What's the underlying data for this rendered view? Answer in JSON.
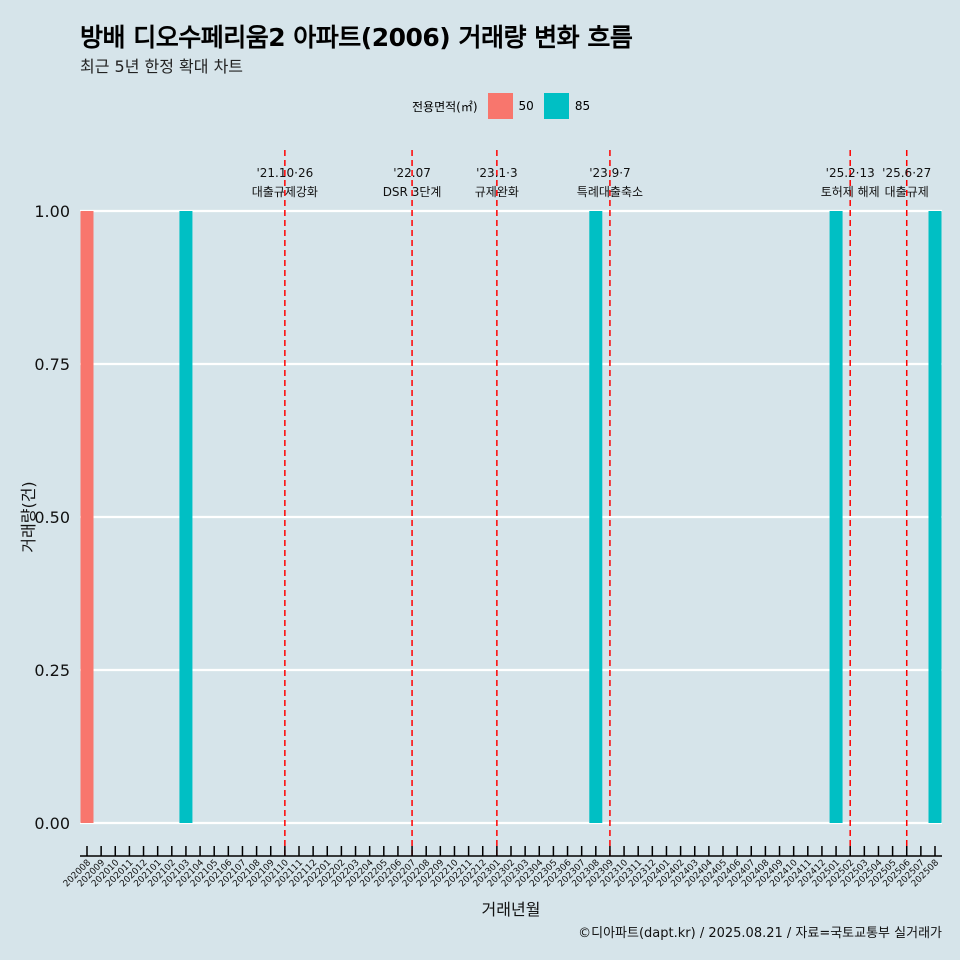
{
  "title": "방배 디오수페리움2 아파트(2006) 거래량 변화 흐름",
  "subtitle": "최근 5년 한정 확대 차트",
  "caption": "©디아파트(dapt.kr) / 2025.08.21 / 자료=국토교통부 실거래가",
  "chart_data": {
    "type": "bar",
    "title": "방배 디오수페리움2 아파트(2006) 거래량 변화 흐름",
    "xlabel": "거래년월",
    "ylabel": "거래량(건)",
    "ylim": [
      0,
      1
    ],
    "yticks": [
      "0.00",
      "0.25",
      "0.50",
      "0.75",
      "1.00"
    ],
    "legend": {
      "title": "전용면적(㎡)",
      "placement": "top",
      "entries": [
        {
          "name": "50",
          "color": "#f8766d"
        },
        {
          "name": "85",
          "color": "#00bfc4"
        }
      ]
    },
    "categories": [
      "202008",
      "202009",
      "202010",
      "202011",
      "202012",
      "202101",
      "202102",
      "202103",
      "202104",
      "202105",
      "202106",
      "202107",
      "202108",
      "202109",
      "202110",
      "202111",
      "202112",
      "202201",
      "202202",
      "202203",
      "202204",
      "202205",
      "202206",
      "202207",
      "202208",
      "202209",
      "202210",
      "202211",
      "202212",
      "202301",
      "202302",
      "202303",
      "202304",
      "202305",
      "202306",
      "202307",
      "202308",
      "202309",
      "202310",
      "202311",
      "202312",
      "202401",
      "202402",
      "202403",
      "202404",
      "202405",
      "202406",
      "202407",
      "202408",
      "202409",
      "202410",
      "202411",
      "202412",
      "202501",
      "202502",
      "202503",
      "202504",
      "202505",
      "202506",
      "202507",
      "202508"
    ],
    "series": [
      {
        "name": "50",
        "color": "#f8766d",
        "points": [
          {
            "x": "202008",
            "y": 1
          }
        ]
      },
      {
        "name": "85",
        "color": "#00bfc4",
        "points": [
          {
            "x": "202103",
            "y": 1
          },
          {
            "x": "202308",
            "y": 1
          },
          {
            "x": "202501",
            "y": 1
          },
          {
            "x": "202508",
            "y": 1
          }
        ]
      }
    ],
    "annotations": [
      {
        "x": "202110",
        "date": "'21.10·26",
        "label": "대출규제강화"
      },
      {
        "x": "202207",
        "date": "'22.07",
        "label": "DSR 3단계"
      },
      {
        "x": "202301",
        "date": "'23.1·3",
        "label": "규제완화"
      },
      {
        "x": "202309",
        "date": "'23.9·7",
        "label": "특례대출축소"
      },
      {
        "x": "202502",
        "date": "'25.2·13",
        "label": "토허제 해제"
      },
      {
        "x": "202506",
        "date": "'25.6·27",
        "label": "대출규제"
      }
    ]
  }
}
